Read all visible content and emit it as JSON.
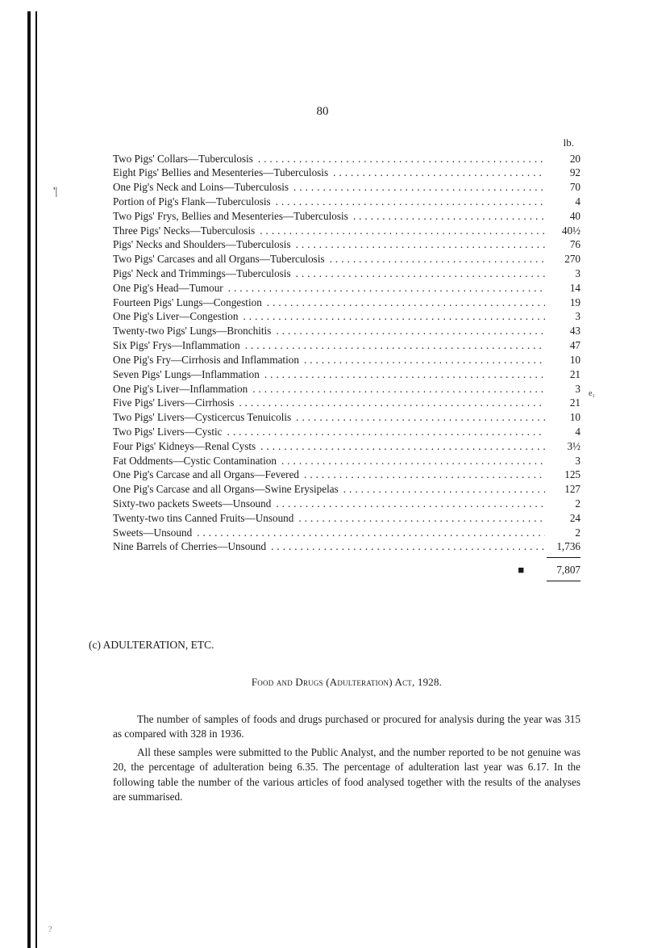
{
  "page_number": "80",
  "header_unit": "lb.",
  "rows": [
    {
      "desc": "Two Pigs' Collars—Tuberculosis",
      "val": "20"
    },
    {
      "desc": "Eight Pigs' Bellies and Mesenteries—Tuberculosis",
      "val": "92"
    },
    {
      "desc": "One Pig's Neck and Loins—Tuberculosis",
      "val": "70"
    },
    {
      "desc": "Portion of Pig's Flank—Tuberculosis",
      "val": "4"
    },
    {
      "desc": "Two Pigs' Frys, Bellies and Mesenteries—Tuberculosis",
      "val": "40"
    },
    {
      "desc": "Three Pigs' Necks—Tuberculosis",
      "val": "40½"
    },
    {
      "desc": "Pigs' Necks and Shoulders—Tuberculosis",
      "val": "76"
    },
    {
      "desc": "Two Pigs' Carcases and all Organs—Tuberculosis",
      "val": "270"
    },
    {
      "desc": "Pigs' Neck and Trimmings—Tuberculosis",
      "val": "3"
    },
    {
      "desc": "One Pig's Head—Tumour",
      "val": "14"
    },
    {
      "desc": "Fourteen Pigs' Lungs—Congestion",
      "val": "19"
    },
    {
      "desc": "One Pig's Liver—Congestion",
      "val": "3"
    },
    {
      "desc": "Twenty-two Pigs' Lungs—Bronchitis",
      "val": "43"
    },
    {
      "desc": "Six Pigs' Frys—Inflammation",
      "val": "47"
    },
    {
      "desc": "One Pig's Fry—Cirrhosis and Inflammation",
      "val": "10"
    },
    {
      "desc": "Seven Pigs' Lungs—Inflammation",
      "val": "21"
    },
    {
      "desc": "One Pig's Liver—Inflammation",
      "val": "3"
    },
    {
      "desc": "Five Pigs' Livers—Cirrhosis",
      "val": "21"
    },
    {
      "desc": "Two Pigs' Livers—Cysticercus Tenuicolis",
      "val": "10"
    },
    {
      "desc": "Two Pigs' Livers—Cystic",
      "val": "4"
    },
    {
      "desc": "Four Pigs' Kidneys—Renal Cysts",
      "val": "3½"
    },
    {
      "desc": "Fat Oddments—Cystic Contamination",
      "val": "3"
    },
    {
      "desc": "One Pig's Carcase and all Organs—Fevered",
      "val": "125"
    },
    {
      "desc": "One Pig's Carcase and all Organs—Swine Erysipelas",
      "val": "127"
    },
    {
      "desc": "Sixty-two packets Sweets—Unsound",
      "val": "2"
    },
    {
      "desc": "Twenty-two tins Canned Fruits—Unsound",
      "val": "24"
    },
    {
      "desc": "Sweets—Unsound",
      "val": "2"
    },
    {
      "desc": "Nine Barrels of Cherries—Unsound",
      "val": "1,736"
    }
  ],
  "total": "7,807",
  "section_c_label": "(c) ADULTERATION, ETC.",
  "act_line": "Food and Drugs (Adulteration) Act, 1928.",
  "para1": "The number of samples of foods and drugs purchased or procured for analysis during the year was 315 as compared with 328 in 1936.",
  "para2": "All these samples were submitted to the Public Analyst, and the number reported to be not genuine was 20, the percentage of adulteration being 6.35. The percentage of adulteration last year was 6.17. In the following table the number of the various articles of food analysed together with the results of the analyses are summarised.",
  "tick": "'|",
  "margin_mark": "e₁",
  "smudge": "?"
}
